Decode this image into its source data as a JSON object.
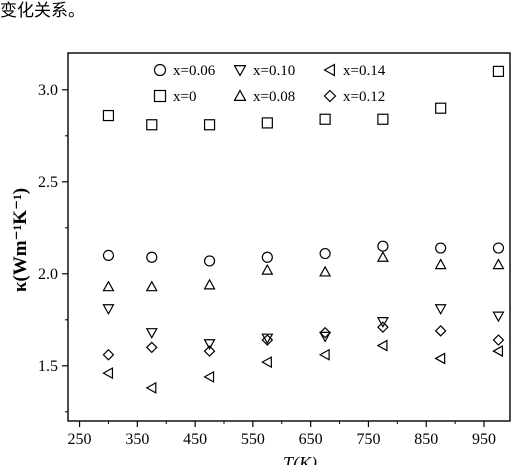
{
  "caption": "变化关系。",
  "chart_data": {
    "type": "scatter",
    "xlabel": "T(K)",
    "ylabel": "κ(Wm⁻¹K⁻¹)",
    "xlim": [
      230,
      995
    ],
    "ylim": [
      1.2,
      3.2
    ],
    "xticks": [
      250,
      350,
      450,
      550,
      650,
      750,
      850,
      950
    ],
    "yticks": [
      1.5,
      2.0,
      2.5,
      3.0
    ],
    "x_tick_labels": [
      "250",
      "350",
      "450",
      "550",
      "650",
      "750",
      "850",
      "950"
    ],
    "y_tick_labels": [
      "1.5",
      "2.0",
      "2.5",
      "3.0"
    ],
    "legend_position": "top",
    "series": [
      {
        "name": "x=0",
        "label": "x=0",
        "marker": "square",
        "x": [
          300,
          375,
          475,
          575,
          675,
          775,
          875,
          975
        ],
        "y": [
          2.86,
          2.81,
          2.81,
          2.82,
          2.84,
          2.84,
          2.9,
          3.1
        ]
      },
      {
        "name": "x=0.06",
        "label": "x=0.06",
        "marker": "circle",
        "x": [
          300,
          375,
          475,
          575,
          675,
          775,
          875,
          975
        ],
        "y": [
          2.1,
          2.09,
          2.07,
          2.09,
          2.11,
          2.15,
          2.14,
          2.14
        ]
      },
      {
        "name": "x=0.08",
        "label": "x=0.08",
        "marker": "triangle-up",
        "x": [
          300,
          375,
          475,
          575,
          675,
          775,
          875,
          975
        ],
        "y": [
          1.93,
          1.93,
          1.94,
          2.02,
          2.01,
          2.09,
          2.05,
          2.05
        ]
      },
      {
        "name": "x=0.10",
        "label": "x=0.10",
        "marker": "triangle-down",
        "x": [
          300,
          375,
          475,
          575,
          675,
          775,
          875,
          975
        ],
        "y": [
          1.81,
          1.68,
          1.62,
          1.65,
          1.66,
          1.74,
          1.81,
          1.77
        ]
      },
      {
        "name": "x=0.12",
        "label": "x=0.12",
        "marker": "diamond",
        "x": [
          300,
          375,
          475,
          575,
          675,
          775,
          875,
          975
        ],
        "y": [
          1.56,
          1.6,
          1.58,
          1.64,
          1.68,
          1.71,
          1.69,
          1.64
        ]
      },
      {
        "name": "x=0.14",
        "label": "x=0.14",
        "marker": "triangle-left",
        "x": [
          300,
          375,
          475,
          575,
          675,
          775,
          875,
          975
        ],
        "y": [
          1.46,
          1.38,
          1.44,
          1.52,
          1.56,
          1.61,
          1.54,
          1.58
        ]
      }
    ]
  }
}
